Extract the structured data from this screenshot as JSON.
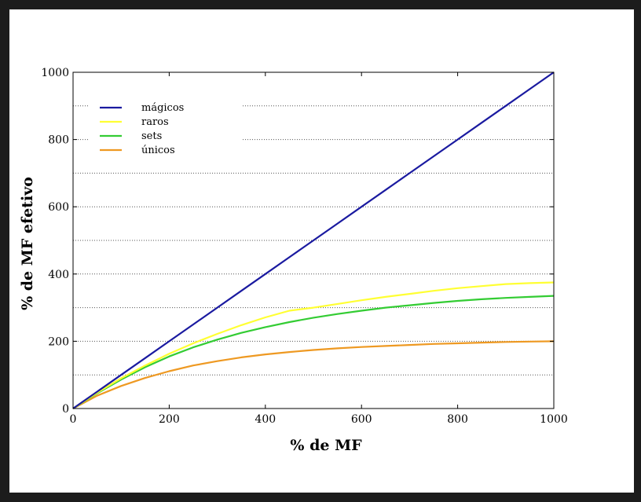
{
  "chart_data": {
    "type": "line",
    "title": "",
    "xlabel": "% de MF",
    "ylabel": "% de MF efetivo",
    "xlim": [
      0,
      1000
    ],
    "ylim": [
      0,
      1000
    ],
    "xticks": [
      "0",
      "200",
      "400",
      "600",
      "800",
      "1000"
    ],
    "yticks": [
      "0",
      "200",
      "400",
      "600",
      "800",
      "1000"
    ],
    "grid": "horizontal dotted",
    "legend_position": "top-left",
    "x": [
      0,
      50,
      100,
      150,
      200,
      250,
      300,
      350,
      400,
      450,
      500,
      550,
      600,
      650,
      700,
      750,
      800,
      850,
      900,
      950,
      1000
    ],
    "series": [
      {
        "name": "mágicos",
        "color": "#1a1aa0",
        "values": [
          0,
          50,
          100,
          150,
          200,
          250,
          300,
          350,
          400,
          450,
          500,
          550,
          600,
          650,
          700,
          750,
          800,
          850,
          900,
          950,
          1000
        ]
      },
      {
        "name": "raros",
        "color": "#ffff33",
        "values": [
          0,
          47,
          90,
          128,
          163,
          194,
          222,
          248,
          271,
          291,
          300,
          311,
          322,
          332,
          341,
          350,
          358,
          364,
          370,
          373,
          375
        ]
      },
      {
        "name": "sets",
        "color": "#33cc33",
        "values": [
          0,
          45,
          86,
          123,
          155,
          182,
          205,
          225,
          242,
          257,
          270,
          281,
          291,
          300,
          307,
          314,
          320,
          325,
          329,
          332,
          335
        ]
      },
      {
        "name": "únicos",
        "color": "#ee9922",
        "values": [
          0,
          38,
          67,
          91,
          111,
          128,
          141,
          152,
          161,
          168,
          174,
          179,
          183,
          186,
          189,
          192,
          194,
          196,
          198,
          199,
          200
        ]
      }
    ]
  }
}
